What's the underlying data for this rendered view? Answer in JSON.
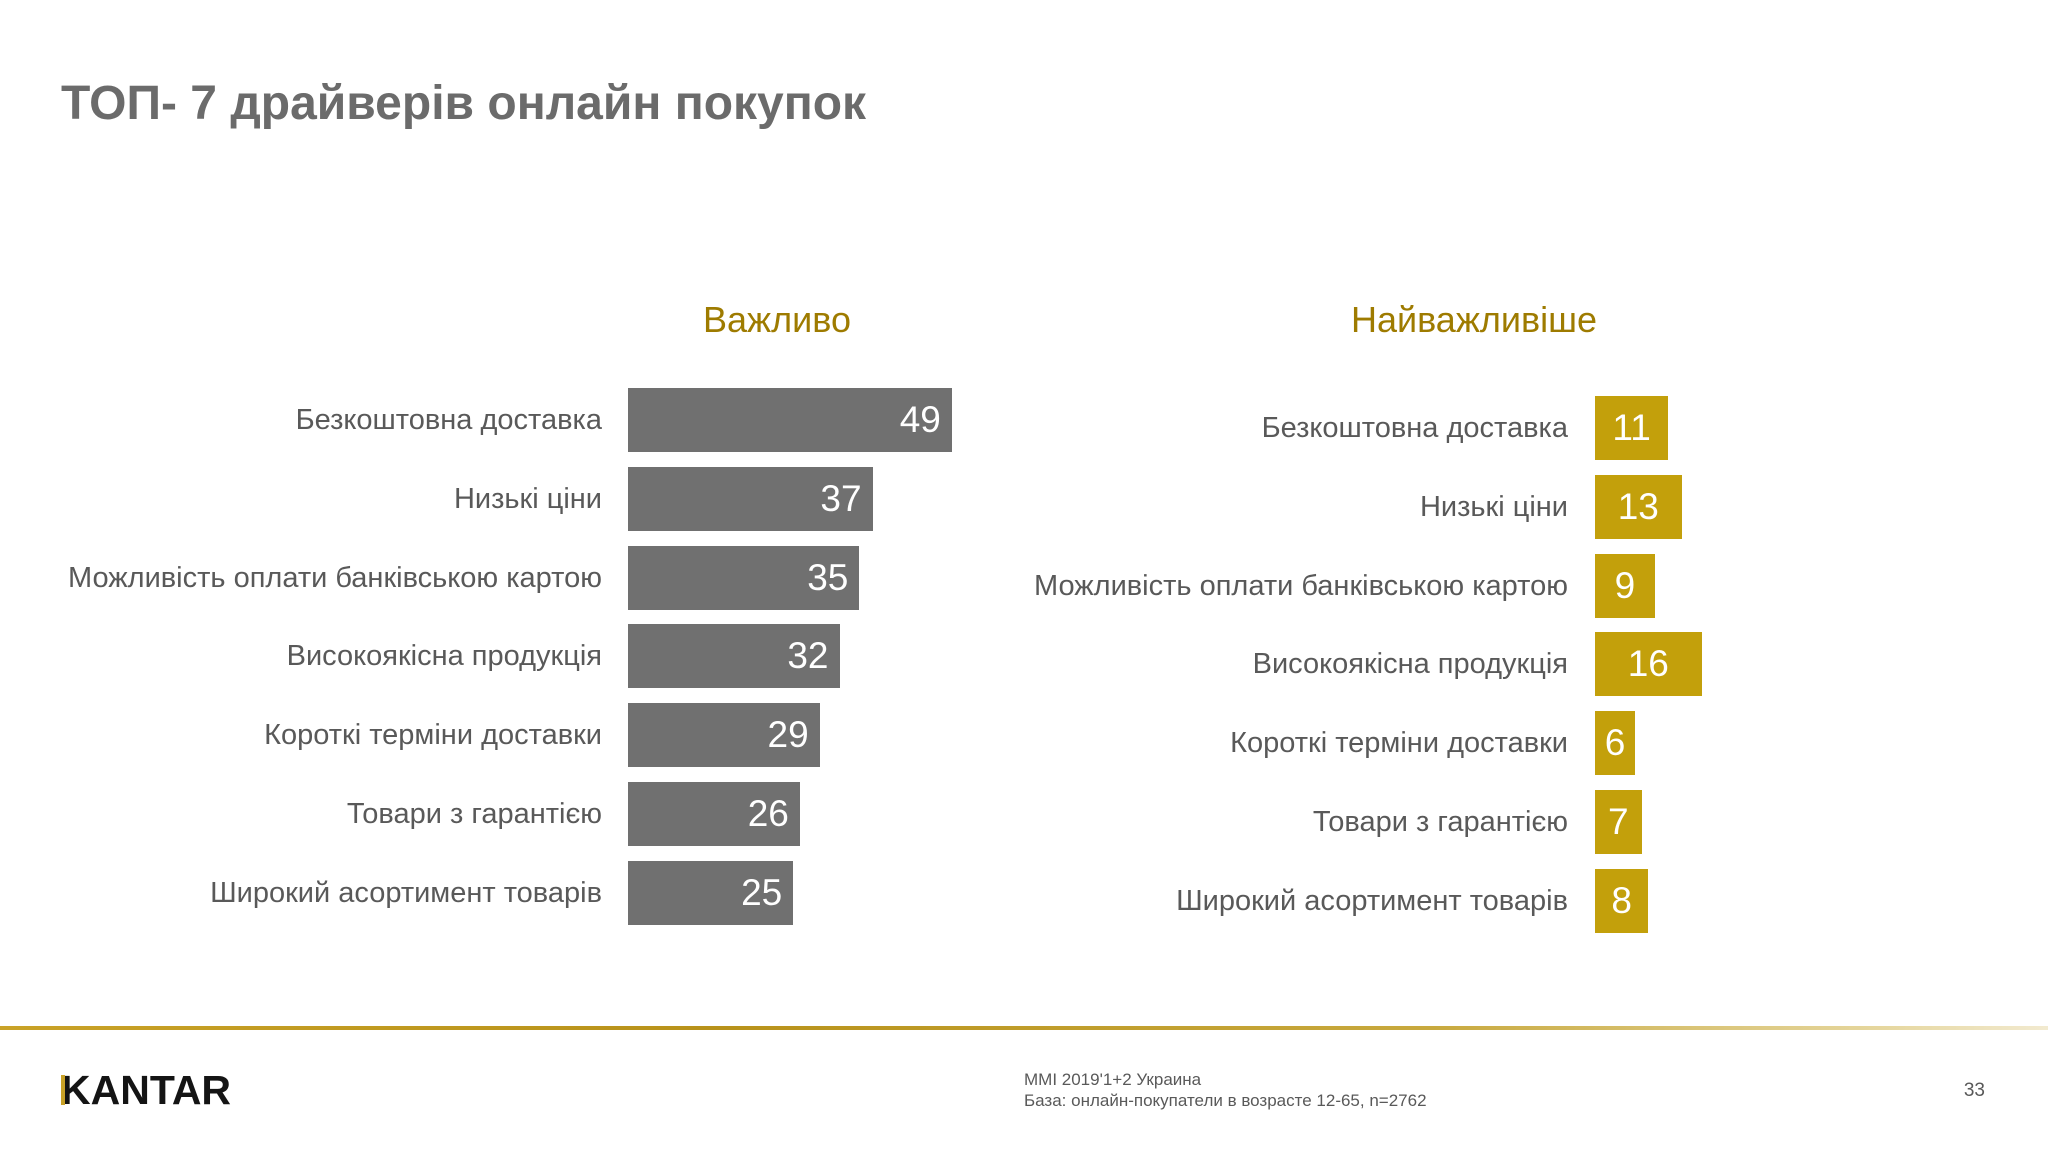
{
  "page": {
    "title": "ТОП- 7 драйверів онлайн покупок"
  },
  "colors": {
    "title": "#6b6b6b",
    "chart_title": "#9e7b00",
    "bar_important": "#707070",
    "bar_most_important": "#c3a00b",
    "label_text": "#595959",
    "value_text": "#ffffff",
    "accent": "#c9a227"
  },
  "chart_data": [
    {
      "type": "bar",
      "orientation": "horizontal",
      "title": "Важливо",
      "categories": [
        "Безкоштовна доставка",
        "Низькі ціни",
        "Можливість оплати банківською картою",
        "Високоякісна продукція",
        "Короткі терміни доставки",
        "Товари з гарантією",
        "Широкий асортимент товарів"
      ],
      "values": [
        49,
        37,
        35,
        32,
        29,
        26,
        25
      ],
      "grid": false,
      "show_values": true
    },
    {
      "type": "bar",
      "orientation": "horizontal",
      "title": "Найважливіше",
      "categories": [
        "Безкоштовна доставка",
        "Низькі ціни",
        "Можливість оплати банківською картою",
        "Високоякісна продукція",
        "Короткі терміни доставки",
        "Товари з гарантією",
        "Широкий асортимент товарів"
      ],
      "values": [
        11,
        13,
        9,
        16,
        6,
        7,
        8
      ],
      "grid": false,
      "show_values": true
    }
  ],
  "footer": {
    "logo": "KANTAR",
    "source_line_1": "MMI 2019'1+2 Украина",
    "source_line_2": "База: онлайн-покупатели в возрасте 12-65, n=2762",
    "page_number": "33"
  }
}
